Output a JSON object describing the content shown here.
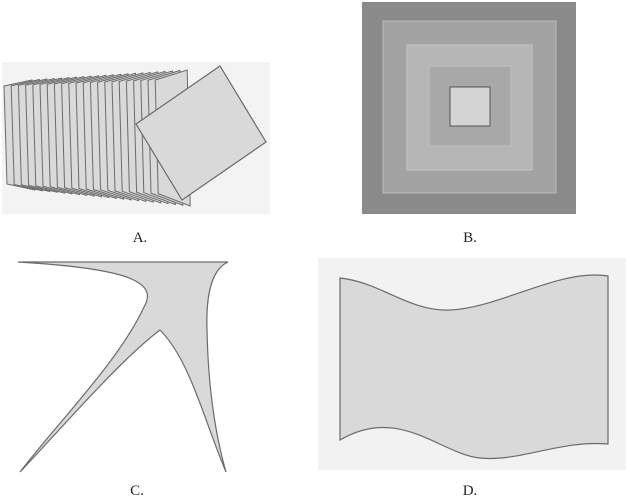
{
  "figures": [
    {
      "id": "a",
      "label": "A."
    },
    {
      "id": "b",
      "label": "B."
    },
    {
      "id": "c",
      "label": "C."
    },
    {
      "id": "d",
      "label": "D."
    }
  ],
  "colors": {
    "fill_light": "#d9d9d9",
    "stroke": "#6b6b6b",
    "frame_outer": "#8a8a8a",
    "frame_2": "#a3a3a3",
    "frame_3": "#b5b5b5",
    "frame_4": "#a8a8a8",
    "frame_inner": "#d4d4d4",
    "panel_bg": "#f2f2f2"
  }
}
